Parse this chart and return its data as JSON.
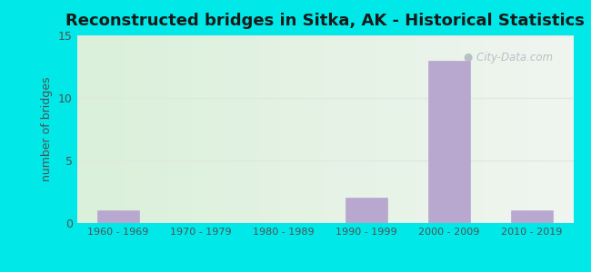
{
  "title": "Reconstructed bridges in Sitka, AK - Historical Statistics",
  "categories": [
    "1960 - 1969",
    "1970 - 1979",
    "1980 - 1989",
    "1990 - 1999",
    "2000 - 2009",
    "2010 - 2019"
  ],
  "values": [
    1,
    0,
    0,
    2,
    13,
    1
  ],
  "bar_color": "#b8a8d0",
  "bar_edgecolor": "#b8a8d0",
  "ylabel": "number of bridges",
  "ylim": [
    0,
    15
  ],
  "yticks": [
    0,
    5,
    10,
    15
  ],
  "outer_bg": "#00e8e8",
  "plot_bg_left": "#daf0da",
  "plot_bg_right": "#f0f5f0",
  "title_fontsize": 13,
  "watermark": "City-Data.com",
  "watermark_color": "#b0b8c0",
  "grid_color": "#e0e8e0"
}
